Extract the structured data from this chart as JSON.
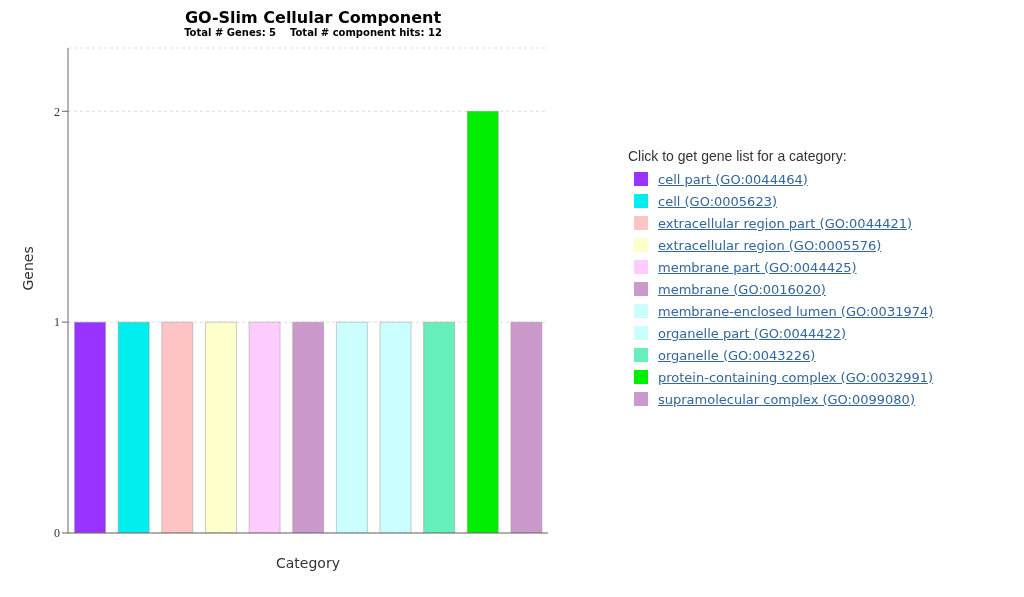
{
  "chart_data": {
    "type": "bar",
    "title": "GO-Slim Cellular Component",
    "subtitle": "Total # Genes: 5    Total # component hits: 12",
    "xlabel": "Category",
    "ylabel": "Genes",
    "legend_title": "Click to get gene list for a category:",
    "categories": [
      null,
      null,
      null,
      null,
      null,
      null,
      null,
      null,
      null,
      null,
      null
    ],
    "stacked": true,
    "ylim": [
      0,
      2.3
    ],
    "yticks": [
      0,
      1,
      2
    ],
    "grid": "y",
    "legend": "right",
    "series": [
      {
        "name": "cell part (GO:0044464)",
        "color": "#9933ff",
        "values": [
          1,
          null,
          null,
          null,
          null,
          null,
          null,
          null,
          null,
          null,
          null
        ]
      },
      {
        "name": "cell (GO:0005623)",
        "color": "#00eeee",
        "values": [
          null,
          1,
          null,
          null,
          null,
          null,
          null,
          null,
          null,
          null,
          null
        ]
      },
      {
        "name": "extracellular region part (GO:0044421)",
        "color": "#ffc4c4",
        "values": [
          null,
          null,
          1,
          null,
          null,
          null,
          null,
          null,
          null,
          null,
          null
        ]
      },
      {
        "name": "extracellular region (GO:0005576)",
        "color": "#ffffcc",
        "values": [
          null,
          null,
          null,
          1,
          null,
          null,
          null,
          null,
          null,
          null,
          null
        ]
      },
      {
        "name": "membrane part (GO:0044425)",
        "color": "#ffccff",
        "values": [
          null,
          null,
          null,
          null,
          1,
          null,
          null,
          null,
          null,
          null,
          null
        ]
      },
      {
        "name": "membrane (GO:0016020)",
        "color": "#cc99cc",
        "values": [
          null,
          null,
          null,
          null,
          null,
          1,
          null,
          null,
          null,
          null,
          null
        ]
      },
      {
        "name": "membrane-enclosed lumen (GO:0031974)",
        "color": "#ccffff",
        "values": [
          null,
          null,
          null,
          null,
          null,
          null,
          1,
          null,
          null,
          null,
          null
        ]
      },
      {
        "name": "organelle part (GO:0044422)",
        "color": "#ccffff",
        "values": [
          null,
          null,
          null,
          null,
          null,
          null,
          null,
          1,
          null,
          null,
          null
        ]
      },
      {
        "name": "organelle (GO:0043226)",
        "color": "#66eebb",
        "values": [
          null,
          null,
          null,
          null,
          null,
          null,
          null,
          null,
          1,
          null,
          null
        ]
      },
      {
        "name": "protein-containing complex (GO:0032991)",
        "color": "#00ee00",
        "values": [
          null,
          null,
          null,
          null,
          null,
          null,
          null,
          null,
          null,
          2,
          null
        ]
      },
      {
        "name": "supramolecular complex (GO:0099080)",
        "color": "#cc99cc",
        "values": [
          null,
          null,
          null,
          null,
          null,
          null,
          null,
          null,
          null,
          null,
          1
        ]
      }
    ]
  }
}
